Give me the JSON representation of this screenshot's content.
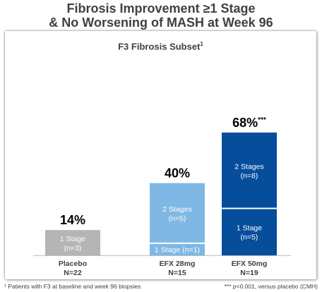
{
  "title_line1": "Fibrosis Improvement ≥1 Stage",
  "title_line2": "& No Worsening of MASH at Week 96",
  "subtitle": "F3 Fibrosis Subset",
  "subtitle_sup": "1",
  "footnote_left": "¹ Patients with F3 at baseline and week 96 biopsies",
  "footnote_right": "*** p<0.001, versus placebo (CMH)",
  "colors": {
    "placebo": "#b5b5b5",
    "efx28": "#7fb8e4",
    "efx50": "#064d9c"
  },
  "chart_data": {
    "type": "bar",
    "stacked": true,
    "title": "F3 Fibrosis Subset",
    "ylim": [
      0,
      80
    ],
    "categories": [
      {
        "label": "Placebo",
        "n": "N=22",
        "total": 14,
        "total_label": "14%",
        "sig": "",
        "segments": [
          {
            "name": "1 Stage",
            "n": "(n=3)",
            "value": 14
          }
        ]
      },
      {
        "label": "EFX 28mg",
        "n": "N=15",
        "total": 40,
        "total_label": "40%",
        "sig": "",
        "segments": [
          {
            "name": "1 Stage",
            "n": "(n=1)",
            "value": 6.7
          },
          {
            "name": "2 Stages",
            "n": "(n=5)",
            "value": 33.3
          }
        ]
      },
      {
        "label": "EFX 50mg",
        "n": "N=19",
        "total": 68,
        "total_label": "68%",
        "sig": "***",
        "segments": [
          {
            "name": "1 Stage",
            "n": "(n=5)",
            "value": 26
          },
          {
            "name": "2 Stages",
            "n": "(n=8)",
            "value": 42
          }
        ]
      }
    ]
  }
}
